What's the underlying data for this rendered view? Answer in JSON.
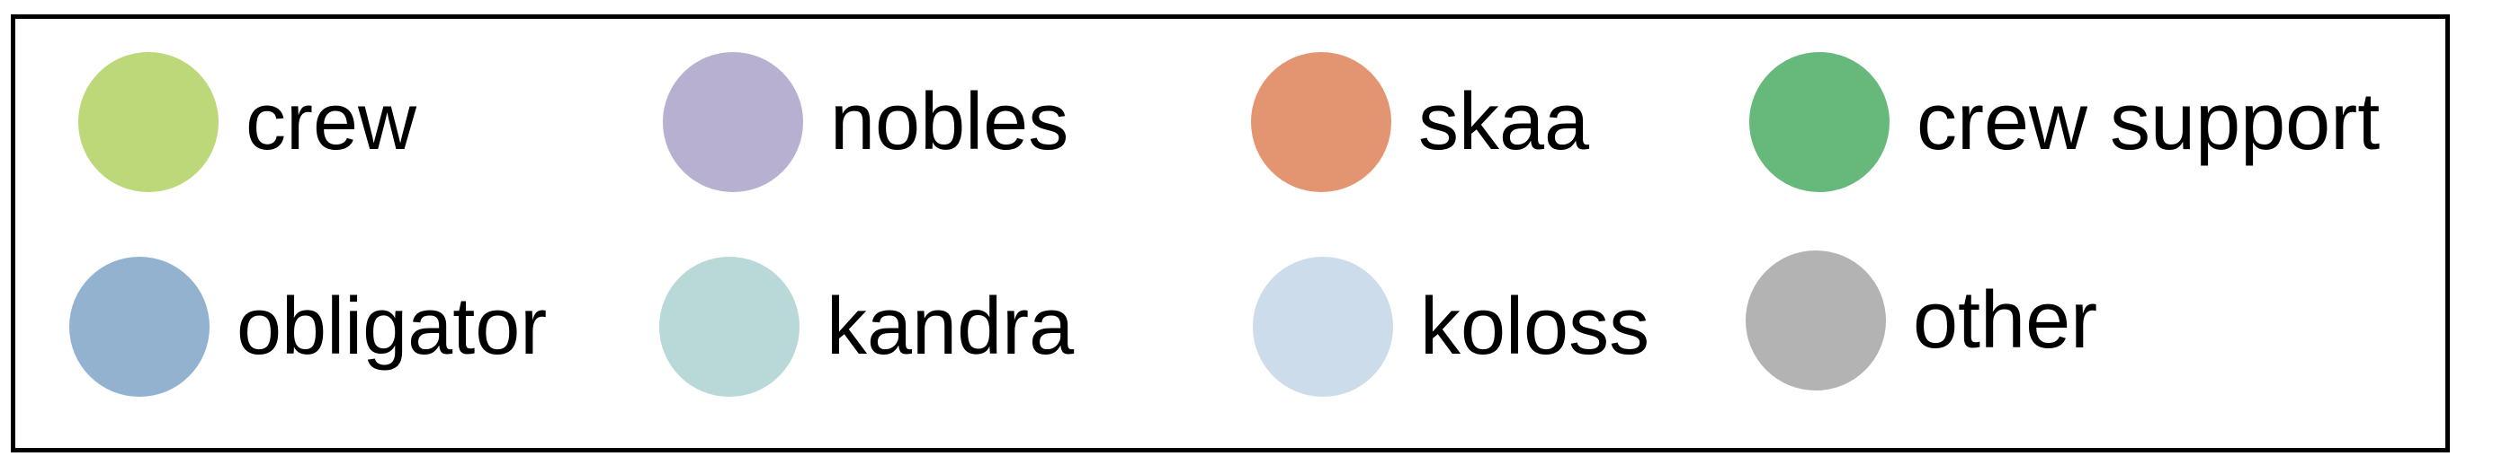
{
  "legend": {
    "items": [
      {
        "label": "crew",
        "color": "#bcd879"
      },
      {
        "label": "nobles",
        "color": "#b8b0d1"
      },
      {
        "label": "skaa",
        "color": "#e39572"
      },
      {
        "label": "crew support",
        "color": "#66b97b"
      },
      {
        "label": "obligator",
        "color": "#92b2d0"
      },
      {
        "label": "kandra",
        "color": "#b8d9d7"
      },
      {
        "label": "koloss",
        "color": "#cddceb"
      },
      {
        "label": "other",
        "color": "#b3b3b3"
      }
    ]
  }
}
